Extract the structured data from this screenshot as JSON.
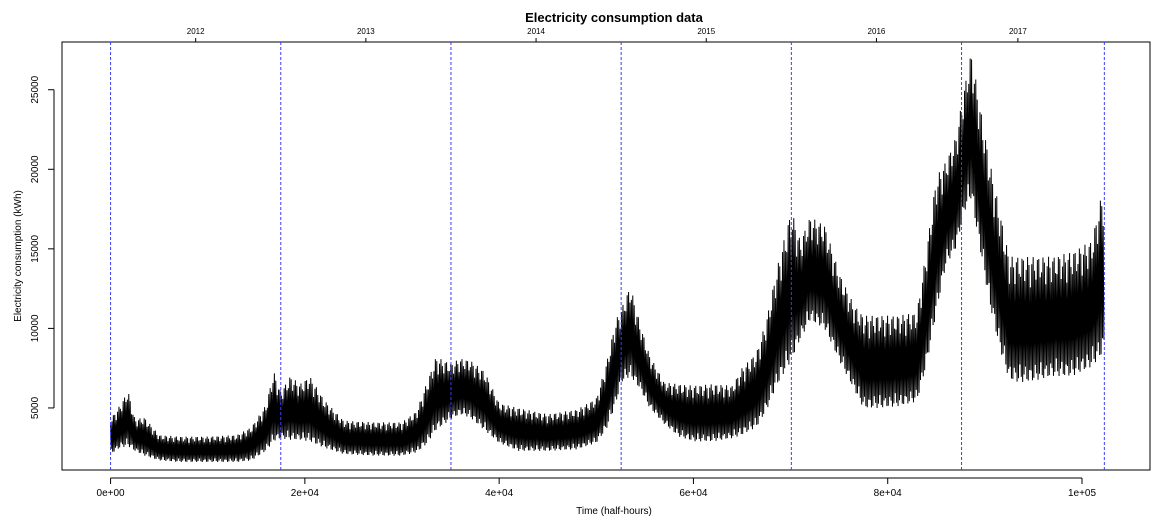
{
  "chart_data": {
    "type": "line",
    "title": "Electricity consumption data",
    "xlabel": "Time (half-hours)",
    "ylabel": "Electricity consumption (kWh)",
    "xlim": [
      -5000,
      107000
    ],
    "ylim": [
      1100,
      28000
    ],
    "x_ticks": [
      {
        "value": 0,
        "label": "0e+00"
      },
      {
        "value": 20000,
        "label": "2e+04"
      },
      {
        "value": 40000,
        "label": "4e+04"
      },
      {
        "value": 60000,
        "label": "6e+04"
      },
      {
        "value": 80000,
        "label": "8e+04"
      },
      {
        "value": 100000,
        "label": "1e+05"
      }
    ],
    "y_ticks": [
      {
        "value": 5000,
        "label": "5000"
      },
      {
        "value": 10000,
        "label": "10000"
      },
      {
        "value": 15000,
        "label": "15000"
      },
      {
        "value": 20000,
        "label": "20000"
      },
      {
        "value": 25000,
        "label": "25000"
      }
    ],
    "year_lines": [
      0,
      17520,
      35040,
      52560,
      70080,
      87600,
      102300
    ],
    "year_labels": [
      {
        "value": 8760,
        "label": "2012"
      },
      {
        "value": 26280,
        "label": "2013"
      },
      {
        "value": 43800,
        "label": "2014"
      },
      {
        "value": 61320,
        "label": "2015"
      },
      {
        "value": 78840,
        "label": "2016"
      },
      {
        "value": 93400,
        "label": "2017"
      }
    ],
    "colors": {
      "series": "#000000",
      "year_line": "#3b3bff"
    },
    "series": [
      {
        "x": [
          0,
          1000,
          1800,
          2500,
          3500,
          5000,
          7000,
          10000,
          13000,
          14500,
          16000,
          16800,
          17520,
          18500,
          19500,
          20500,
          22000,
          24000,
          27000,
          30000,
          31500,
          32500,
          33500,
          35040,
          36000,
          37000,
          38500,
          40000,
          42000,
          45000,
          48000,
          50000,
          51000,
          52000,
          52560,
          53500,
          54500,
          55500,
          57000,
          58500,
          60000,
          62000,
          64000,
          65000,
          66500,
          67500,
          68500,
          70080,
          71000,
          72000,
          73500,
          75000,
          76500,
          77500,
          79000,
          81000,
          83000,
          84000,
          85000,
          86000,
          87000,
          88000,
          88600,
          89500,
          90500,
          91500,
          92500,
          93500,
          95000,
          97000,
          99000,
          101000,
          102300
        ],
        "high": [
          4300,
          5200,
          6100,
          4300,
          4400,
          3300,
          3200,
          3200,
          3300,
          3800,
          5200,
          7300,
          6000,
          7000,
          6500,
          7000,
          5500,
          4200,
          4100,
          4100,
          4800,
          6500,
          8200,
          7800,
          8100,
          8000,
          7300,
          5300,
          5000,
          4600,
          4900,
          5600,
          7700,
          10500,
          11200,
          12700,
          10300,
          8300,
          6600,
          6500,
          6400,
          6500,
          6400,
          7500,
          8500,
          10500,
          13500,
          17500,
          15500,
          17000,
          16500,
          13500,
          11500,
          10800,
          10800,
          10800,
          11000,
          15000,
          19500,
          20500,
          22000,
          25500,
          27400,
          24000,
          20500,
          17500,
          14500,
          14500,
          14500,
          14500,
          14800,
          15500,
          19200
        ],
        "low": [
          2100,
          2500,
          2600,
          2300,
          2000,
          1700,
          1600,
          1600,
          1600,
          1700,
          2300,
          2900,
          3100,
          3000,
          3000,
          2900,
          2500,
          2100,
          2000,
          2000,
          2200,
          2700,
          3600,
          4300,
          4600,
          4400,
          3600,
          2800,
          2300,
          2300,
          2400,
          2800,
          3600,
          5200,
          6600,
          7000,
          6200,
          5000,
          4000,
          3200,
          2900,
          2900,
          3100,
          3300,
          3800,
          4800,
          6300,
          8000,
          9300,
          10500,
          10000,
          8000,
          6200,
          5000,
          5000,
          5100,
          5400,
          7700,
          11000,
          14000,
          15000,
          17500,
          18200,
          15000,
          11500,
          8800,
          6800,
          6600,
          6700,
          7000,
          7000,
          7600,
          8500
        ]
      }
    ]
  }
}
